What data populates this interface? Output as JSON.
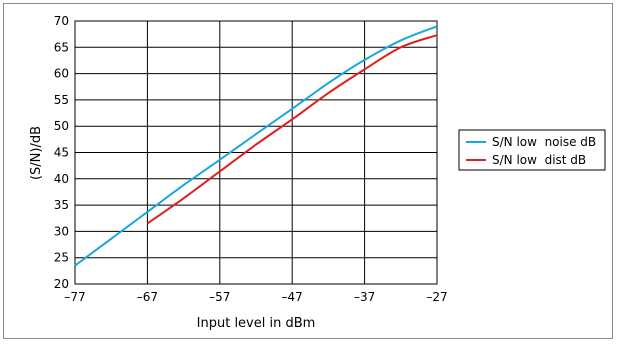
{
  "chart_data": {
    "type": "line",
    "title": "",
    "xlabel": "Input level in dBm",
    "ylabel": "(S/N)/dB",
    "xlim": [
      -77,
      -27
    ],
    "ylim": [
      20,
      70
    ],
    "x_ticks": [
      -77,
      -67,
      -57,
      -47,
      -37,
      -27
    ],
    "x_tick_labels": [
      "–77",
      "–67",
      "–57",
      "–47",
      "–37",
      "–27"
    ],
    "y_ticks": [
      20,
      25,
      30,
      35,
      40,
      45,
      50,
      55,
      60,
      65,
      70
    ],
    "y_tick_labels": [
      "20",
      "25",
      "30",
      "35",
      "40",
      "45",
      "50",
      "55",
      "60",
      "65",
      "70"
    ],
    "grid": true,
    "legend_position": "right",
    "series": [
      {
        "name": "S/N low  noise dB",
        "color": "#1aa6e0",
        "x": [
          -77,
          -72,
          -67,
          -62,
          -57,
          -52,
          -47,
          -42,
          -37,
          -32,
          -27
        ],
        "values": [
          23.5,
          28.6,
          33.7,
          38.8,
          43.6,
          48.5,
          53.3,
          58.2,
          62.6,
          66.3,
          69.0
        ]
      },
      {
        "name": "S/N low  dist dB",
        "color": "#e02020",
        "x": [
          -67,
          -62,
          -57,
          -52,
          -47,
          -42,
          -37,
          -32,
          -27
        ],
        "values": [
          31.5,
          36.3,
          41.4,
          46.5,
          51.3,
          56.3,
          60.8,
          65.0,
          67.3
        ]
      }
    ]
  }
}
